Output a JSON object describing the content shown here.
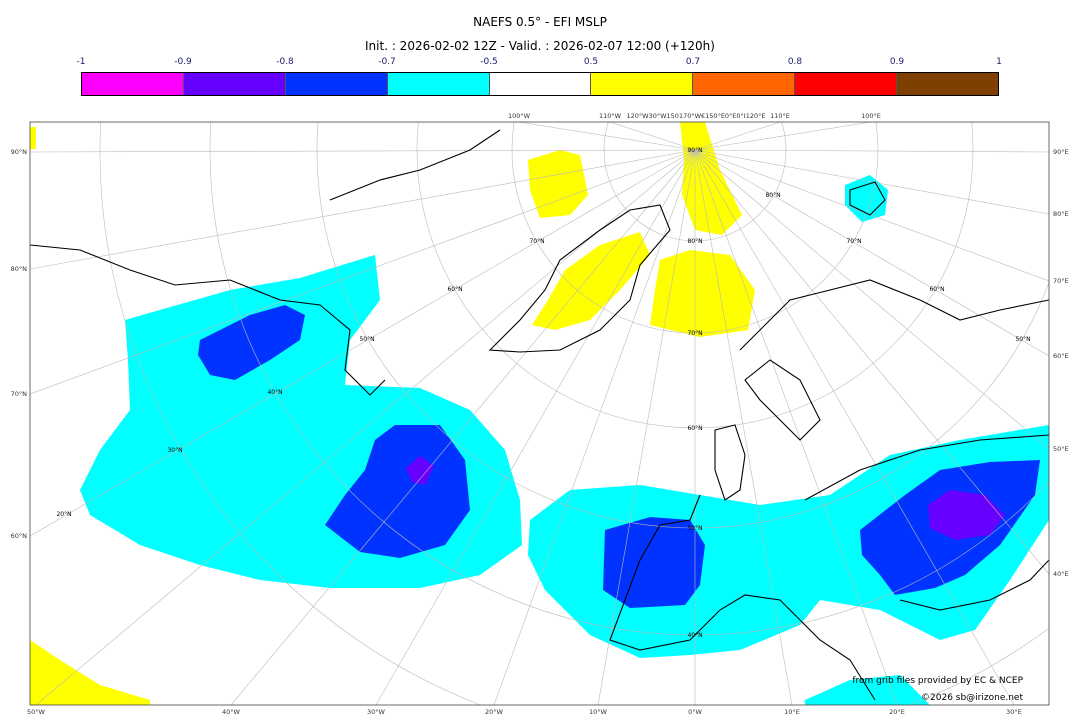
{
  "title": "NAEFS 0.5° - EFI MSLP",
  "subtitle": "Init. : 2026-02-02 12Z - Valid. : 2026-02-07 12:00 (+120h)",
  "colorbar": {
    "ticks": [
      "-1",
      "-0.9",
      "-0.8",
      "-0.7",
      "-0.5",
      "0.5",
      "0.7",
      "0.8",
      "0.9",
      "1"
    ],
    "colors": [
      "#ff00ff",
      "#6600ff",
      "#0033ff",
      "#00ffff",
      "#ffffff",
      "#ffff00",
      "#ff6600",
      "#ff0000",
      "#7f3f00"
    ]
  },
  "map": {
    "left_labels": [
      "90°N",
      "80°N",
      "70°N",
      "60°N"
    ],
    "right_labels": [
      "90°E",
      "80°E",
      "70°E",
      "60°E",
      "50°E",
      "40°E"
    ],
    "bottom_labels": [
      "50°W",
      "40°W",
      "30°W",
      "20°W",
      "10°W",
      "0°W",
      "10°E",
      "20°E",
      "30°E"
    ],
    "top_labels": [
      "100°W",
      "110°W",
      "120°W30°W150170°W€150°E0°E0°I120°E",
      "110°E",
      "100°E"
    ],
    "inner_labels": [
      "90°N",
      "80°N",
      "70°N",
      "60°N",
      "50°N",
      "40°N",
      "70°N",
      "60°N",
      "50°N",
      "40°N",
      "30°N",
      "20°N",
      "80°N",
      "70°N",
      "60°N",
      "50°N"
    ]
  },
  "credits": {
    "source": "from grib files provided by EC & NCEP",
    "copyright": "©2026 sb@irizone.net"
  }
}
